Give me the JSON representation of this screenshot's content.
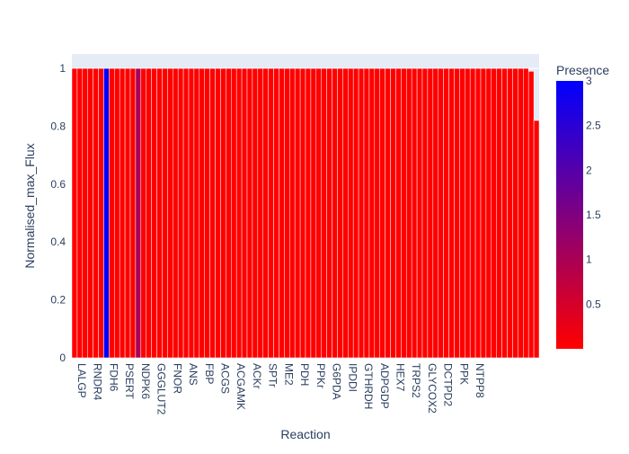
{
  "chart_data": {
    "type": "bar",
    "title": "",
    "xlabel": "Reaction",
    "ylabel": "Normalised_max_Flux",
    "ylim": [
      0,
      1.05
    ],
    "y_ticks": [
      0,
      0.2,
      0.4,
      0.6,
      0.8,
      1
    ],
    "y_tick_labels": [
      "0",
      "0.2",
      "0.4",
      "0.6",
      "0.8",
      "1"
    ],
    "bar_count": 88,
    "x_tick_labels": [
      "LALGP",
      "RNDR4",
      "FDH6",
      "PSERT",
      "NDPK6",
      "GGGLUT2",
      "FNOR",
      "ANS",
      "FBP",
      "ACGS",
      "ACGAMK",
      "ACKr",
      "SPTr",
      "ME2",
      "PDH",
      "PPKr",
      "G6PDA",
      "IPDDI",
      "GTHRDH",
      "ADPGDP",
      "HEX7",
      "TRPS2",
      "GLYCOX2",
      "DCTPD2",
      "PPK",
      "NTPP8"
    ],
    "x_tick_every": 3,
    "values": [
      1,
      1,
      1,
      1,
      1,
      1,
      1,
      1,
      1,
      1,
      1,
      1,
      1,
      1,
      1,
      1,
      1,
      1,
      1,
      1,
      1,
      1,
      1,
      1,
      1,
      1,
      1,
      1,
      1,
      1,
      1,
      1,
      1,
      1,
      1,
      1,
      1,
      1,
      1,
      1,
      1,
      1,
      1,
      1,
      1,
      1,
      1,
      1,
      1,
      1,
      1,
      1,
      1,
      1,
      1,
      1,
      1,
      1,
      1,
      1,
      1,
      1,
      1,
      1,
      1,
      1,
      1,
      1,
      1,
      1,
      1,
      1,
      1,
      1,
      1,
      1,
      1,
      1,
      1,
      1,
      1,
      1,
      1,
      1,
      1,
      1,
      0.99,
      0.82
    ],
    "presence": [
      0,
      0,
      0,
      0,
      0,
      0,
      3,
      0,
      0,
      0,
      0,
      0,
      1,
      0,
      0,
      0,
      0,
      0,
      0,
      0,
      0,
      0,
      0,
      0,
      0,
      0,
      0,
      0,
      0,
      0,
      0,
      0,
      0,
      0,
      0,
      0,
      0,
      0,
      0,
      0,
      0,
      0,
      0,
      0,
      0,
      0,
      0,
      0,
      0,
      0,
      0,
      0,
      0,
      0,
      0,
      0,
      0,
      0,
      0,
      0,
      0,
      0,
      0,
      0,
      0,
      0,
      0,
      0,
      0,
      0,
      0,
      0,
      0,
      0,
      0,
      0,
      0,
      0,
      0,
      0,
      0,
      0,
      0,
      0,
      0,
      0,
      0,
      0
    ],
    "colorbar": {
      "title": "Presence",
      "range": [
        0,
        3
      ],
      "colorscale": [
        "#ff0000",
        "#0000ff"
      ],
      "ticks": [
        0.5,
        1,
        1.5,
        2,
        2.5,
        3
      ],
      "tick_labels": [
        "0.5",
        "1",
        "1.5",
        "2",
        "2.5",
        "3"
      ]
    },
    "colors": {
      "plot_bg": "#e5ecf6",
      "paper_bg": "#ffffff",
      "bar_outline": "#ffffff",
      "text": "#2a3f5f"
    }
  }
}
